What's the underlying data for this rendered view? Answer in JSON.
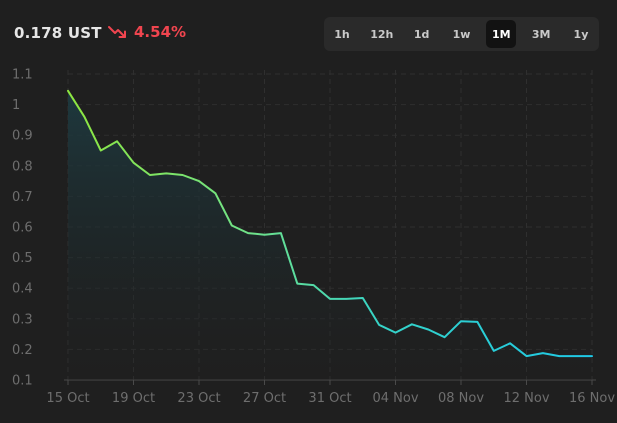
{
  "header": {
    "price": "0.178 UST",
    "change": "4.54%",
    "trend_icon": "trend-down-icon",
    "change_color": "#f0454f"
  },
  "ranges": [
    "1h",
    "12h",
    "1d",
    "1w",
    "1M",
    "3M",
    "1y"
  ],
  "active_range": "1M",
  "colors": {
    "line_start": "#8ee63f",
    "line_end": "#1ec8e6",
    "fill": "#1b2b30",
    "grid": "#2f2f2f",
    "axis": "#4a4a4a",
    "tick_text": "#6e6e6e"
  },
  "chart_data": {
    "type": "area",
    "x_tick_labels": [
      "15 Oct",
      "19 Oct",
      "23 Oct",
      "27 Oct",
      "31 Oct",
      "04 Nov",
      "08 Nov",
      "12 Nov",
      "16 Nov"
    ],
    "y_tick_labels": [
      "0.1",
      "0.2",
      "0.3",
      "0.4",
      "0.5",
      "0.6",
      "0.7",
      "0.8",
      "0.9",
      "1",
      "1.1"
    ],
    "xlim": [
      0,
      32
    ],
    "ylim": [
      0.1,
      1.1
    ],
    "grid": true,
    "x_start_date": "15 Oct",
    "series": [
      {
        "x": [
          0,
          1,
          2,
          3,
          4,
          5,
          6,
          7,
          8,
          9,
          10,
          11,
          12,
          13,
          14,
          15,
          16,
          17,
          18,
          19,
          20,
          21,
          22,
          23,
          24,
          25,
          26,
          27,
          28,
          29,
          30,
          31,
          32
        ],
        "values": [
          1.045,
          0.96,
          0.85,
          0.88,
          0.81,
          0.77,
          0.775,
          0.77,
          0.75,
          0.71,
          0.605,
          0.58,
          0.575,
          0.58,
          0.415,
          0.41,
          0.365,
          0.365,
          0.368,
          0.28,
          0.255,
          0.282,
          0.265,
          0.24,
          0.292,
          0.29,
          0.195,
          0.22,
          0.178,
          0.188,
          0.178,
          0.178,
          0.178
        ]
      }
    ]
  }
}
